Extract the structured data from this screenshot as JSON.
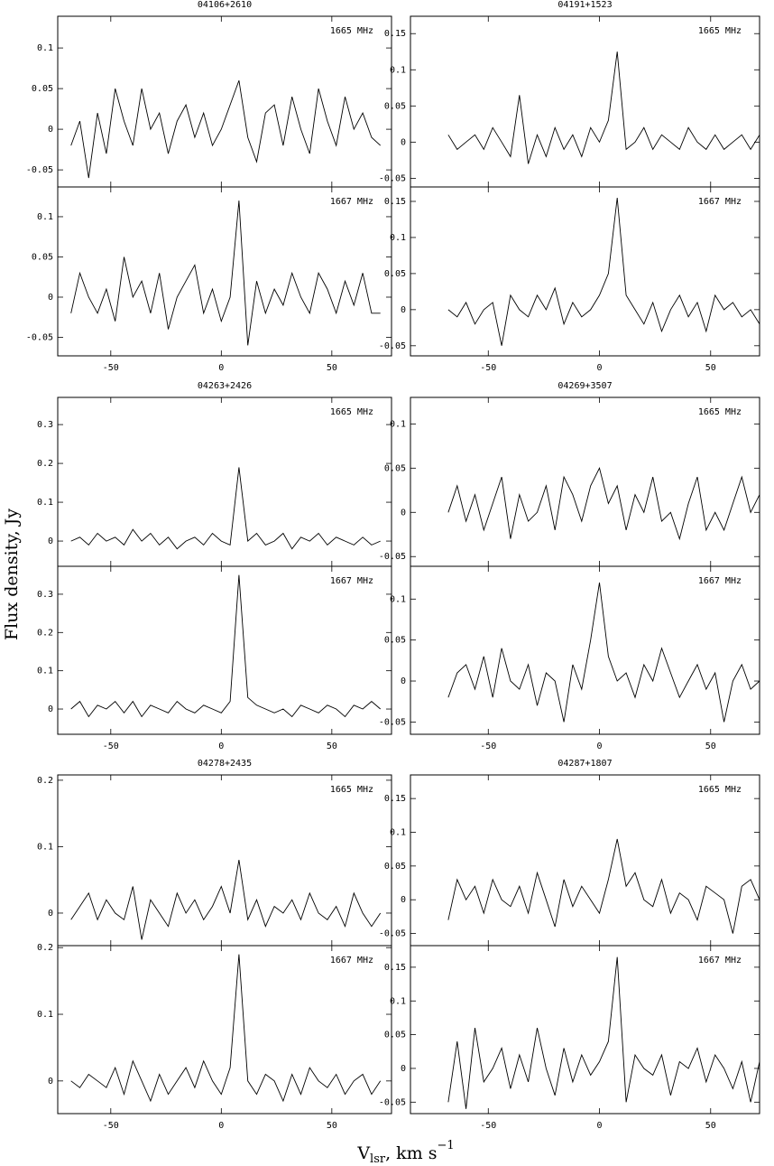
{
  "axis_titles": {
    "ylabel": "Flux density, Jy",
    "xlabel": [
      "V",
      "lsr",
      ", km s",
      "−1"
    ]
  },
  "chart_data": [
    {
      "type": "line",
      "title": "04106+2610",
      "label": "1665 MHz",
      "x": [
        -68,
        -64,
        -60,
        -56,
        -52,
        -48,
        -44,
        -40,
        -36,
        -32,
        -28,
        -24,
        -20,
        -16,
        -12,
        -8,
        -4,
        0,
        4,
        8,
        12,
        16,
        20,
        24,
        28,
        32,
        36,
        40,
        44,
        48,
        52,
        56,
        60,
        64,
        68,
        72
      ],
      "values": [
        -0.02,
        0.01,
        -0.06,
        0.02,
        -0.03,
        0.05,
        0.01,
        -0.02,
        0.05,
        0.0,
        0.02,
        -0.03,
        0.01,
        0.03,
        -0.01,
        0.02,
        -0.02,
        0.0,
        0.03,
        0.06,
        -0.01,
        -0.04,
        0.02,
        0.03,
        -0.02,
        0.04,
        0.0,
        -0.03,
        0.05,
        0.01,
        -0.02,
        0.04,
        0.0,
        0.02,
        -0.01,
        -0.02
      ],
      "color": "#000000",
      "xlim": [
        -74,
        77
      ],
      "xticks": [
        -50,
        0,
        50
      ],
      "ylim": [
        -0.071,
        0.139
      ],
      "yticks": [
        -0.05,
        0,
        0.05,
        0.1
      ]
    },
    {
      "type": "line",
      "label": "1667 MHz",
      "x": [
        -68,
        -64,
        -60,
        -56,
        -52,
        -48,
        -44,
        -40,
        -36,
        -32,
        -28,
        -24,
        -20,
        -16,
        -12,
        -8,
        -4,
        0,
        4,
        8,
        12,
        16,
        20,
        24,
        28,
        32,
        36,
        40,
        44,
        48,
        52,
        56,
        60,
        64,
        68,
        72
      ],
      "values": [
        -0.02,
        0.03,
        0.0,
        -0.02,
        0.01,
        -0.03,
        0.05,
        0.0,
        0.02,
        -0.02,
        0.03,
        -0.04,
        0.0,
        0.02,
        0.04,
        -0.02,
        0.01,
        -0.03,
        0.0,
        0.12,
        -0.06,
        0.02,
        -0.02,
        0.01,
        -0.01,
        0.03,
        0.0,
        -0.02,
        0.03,
        0.01,
        -0.02,
        0.02,
        -0.01,
        0.03,
        -0.02,
        -0.02
      ],
      "color": "#000000",
      "xlim": [
        -74,
        77
      ],
      "xticks": [
        -50,
        0,
        50
      ],
      "ylim": [
        -0.073,
        0.137
      ],
      "yticks": [
        -0.05,
        0,
        0.05,
        0.1
      ]
    },
    {
      "type": "line",
      "title": "04191+1523",
      "label": "1665 MHz",
      "x": [
        -68,
        -64,
        -60,
        -56,
        -52,
        -48,
        -44,
        -40,
        -36,
        -32,
        -28,
        -24,
        -20,
        -16,
        -12,
        -8,
        -4,
        0,
        4,
        8,
        12,
        16,
        20,
        24,
        28,
        32,
        36,
        40,
        44,
        48,
        52,
        56,
        60,
        64,
        68,
        72
      ],
      "values": [
        0.01,
        -0.01,
        0.0,
        0.01,
        -0.01,
        0.02,
        0.0,
        -0.02,
        0.065,
        -0.03,
        0.01,
        -0.02,
        0.02,
        -0.01,
        0.01,
        -0.02,
        0.02,
        0.0,
        0.03,
        0.125,
        -0.01,
        0.0,
        0.02,
        -0.01,
        0.01,
        0.0,
        -0.01,
        0.02,
        0.0,
        -0.01,
        0.01,
        -0.01,
        0.0,
        0.01,
        -0.01,
        0.01
      ],
      "color": "#000000",
      "xlim": [
        -85,
        72
      ],
      "xticks": [
        -50,
        0,
        50
      ],
      "ylim": [
        -0.062,
        0.174
      ],
      "yticks": [
        -0.05,
        0,
        0.05,
        0.1,
        0.15
      ]
    },
    {
      "type": "line",
      "label": "1667 MHz",
      "x": [
        -68,
        -64,
        -60,
        -56,
        -52,
        -48,
        -44,
        -40,
        -36,
        -32,
        -28,
        -24,
        -20,
        -16,
        -12,
        -8,
        -4,
        0,
        4,
        8,
        12,
        16,
        20,
        24,
        28,
        32,
        36,
        40,
        44,
        48,
        52,
        56,
        60,
        64,
        68,
        72
      ],
      "values": [
        0.0,
        -0.01,
        0.01,
        -0.02,
        0.0,
        0.01,
        -0.05,
        0.02,
        0.0,
        -0.01,
        0.02,
        0.0,
        0.03,
        -0.02,
        0.01,
        -0.01,
        0.0,
        0.02,
        0.05,
        0.155,
        0.02,
        0.0,
        -0.02,
        0.01,
        -0.03,
        0.0,
        0.02,
        -0.01,
        0.01,
        -0.03,
        0.02,
        0.0,
        0.01,
        -0.01,
        0.0,
        -0.02
      ],
      "color": "#000000",
      "xlim": [
        -85,
        72
      ],
      "xticks": [
        -50,
        0,
        50
      ],
      "ylim": [
        -0.064,
        0.17
      ],
      "yticks": [
        -0.05,
        0,
        0.05,
        0.1,
        0.15
      ]
    },
    {
      "type": "line",
      "title": "04263+2426",
      "label": "1665 MHz",
      "x": [
        -68,
        -64,
        -60,
        -56,
        -52,
        -48,
        -44,
        -40,
        -36,
        -32,
        -28,
        -24,
        -20,
        -16,
        -12,
        -8,
        -4,
        0,
        4,
        8,
        12,
        16,
        20,
        24,
        28,
        32,
        36,
        40,
        44,
        48,
        52,
        56,
        60,
        64,
        68,
        72
      ],
      "values": [
        0.0,
        0.01,
        -0.01,
        0.02,
        0.0,
        0.01,
        -0.01,
        0.03,
        0.0,
        0.02,
        -0.01,
        0.01,
        -0.02,
        0.0,
        0.01,
        -0.01,
        0.02,
        0.0,
        -0.01,
        0.19,
        0.0,
        0.02,
        -0.01,
        0.0,
        0.02,
        -0.02,
        0.01,
        0.0,
        0.02,
        -0.01,
        0.01,
        0.0,
        -0.01,
        0.01,
        -0.01,
        0.0
      ],
      "color": "#000000",
      "xlim": [
        -74,
        77
      ],
      "xticks": [
        -50,
        0,
        50
      ],
      "ylim": [
        -0.065,
        0.37
      ],
      "yticks": [
        0,
        0.1,
        0.2,
        0.3
      ]
    },
    {
      "type": "line",
      "label": "1667 MHz",
      "x": [
        -68,
        -64,
        -60,
        -56,
        -52,
        -48,
        -44,
        -40,
        -36,
        -32,
        -28,
        -24,
        -20,
        -16,
        -12,
        -8,
        -4,
        0,
        4,
        8,
        12,
        16,
        20,
        24,
        28,
        32,
        36,
        40,
        44,
        48,
        52,
        56,
        60,
        64,
        68,
        72
      ],
      "values": [
        0.0,
        0.02,
        -0.02,
        0.01,
        0.0,
        0.02,
        -0.01,
        0.02,
        -0.02,
        0.01,
        0.0,
        -0.01,
        0.02,
        0.0,
        -0.01,
        0.01,
        0.0,
        -0.01,
        0.02,
        0.35,
        0.03,
        0.01,
        0.0,
        -0.01,
        0.0,
        -0.02,
        0.01,
        0.0,
        -0.01,
        0.01,
        0.0,
        -0.02,
        0.01,
        0.0,
        0.02,
        0.0
      ],
      "color": "#000000",
      "xlim": [
        -74,
        77
      ],
      "xticks": [
        -50,
        0,
        50
      ],
      "ylim": [
        -0.066,
        0.373
      ],
      "yticks": [
        0,
        0.1,
        0.2,
        0.3
      ]
    },
    {
      "type": "line",
      "title": "04269+3507",
      "label": "1665 MHz",
      "x": [
        -68,
        -64,
        -60,
        -56,
        -52,
        -48,
        -44,
        -40,
        -36,
        -32,
        -28,
        -24,
        -20,
        -16,
        -12,
        -8,
        -4,
        0,
        4,
        8,
        12,
        16,
        20,
        24,
        28,
        32,
        36,
        40,
        44,
        48,
        52,
        56,
        60,
        64,
        68,
        72
      ],
      "values": [
        0.0,
        0.03,
        -0.01,
        0.02,
        -0.02,
        0.01,
        0.04,
        -0.03,
        0.02,
        -0.01,
        0.0,
        0.03,
        -0.02,
        0.04,
        0.02,
        -0.01,
        0.03,
        0.05,
        0.01,
        0.03,
        -0.02,
        0.02,
        0.0,
        0.04,
        -0.01,
        0.0,
        -0.03,
        0.01,
        0.04,
        -0.02,
        0.0,
        -0.02,
        0.01,
        0.04,
        0.0,
        0.02
      ],
      "color": "#000000",
      "xlim": [
        -85,
        72
      ],
      "xticks": [
        -50,
        0,
        50
      ],
      "ylim": [
        -0.061,
        0.13
      ],
      "yticks": [
        -0.05,
        0,
        0.05,
        0.1
      ]
    },
    {
      "type": "line",
      "label": "1667 MHz",
      "x": [
        -68,
        -64,
        -60,
        -56,
        -52,
        -48,
        -44,
        -40,
        -36,
        -32,
        -28,
        -24,
        -20,
        -16,
        -12,
        -8,
        -4,
        0,
        4,
        8,
        12,
        16,
        20,
        24,
        28,
        32,
        36,
        40,
        44,
        48,
        52,
        56,
        60,
        64,
        68,
        72
      ],
      "values": [
        -0.02,
        0.01,
        0.02,
        -0.01,
        0.03,
        -0.02,
        0.04,
        0.0,
        -0.01,
        0.02,
        -0.03,
        0.01,
        0.0,
        -0.05,
        0.02,
        -0.01,
        0.05,
        0.12,
        0.03,
        0.0,
        0.01,
        -0.02,
        0.02,
        0.0,
        0.04,
        0.01,
        -0.02,
        0.0,
        0.02,
        -0.01,
        0.01,
        -0.05,
        0.0,
        0.02,
        -0.01,
        0.0
      ],
      "color": "#000000",
      "xlim": [
        -85,
        72
      ],
      "xticks": [
        -50,
        0,
        50
      ],
      "ylim": [
        -0.065,
        0.14
      ],
      "yticks": [
        -0.05,
        0,
        0.05,
        0.1
      ]
    },
    {
      "type": "line",
      "title": "04278+2435",
      "label": "1665 MHz",
      "x": [
        -68,
        -64,
        -60,
        -56,
        -52,
        -48,
        -44,
        -40,
        -36,
        -32,
        -28,
        -24,
        -20,
        -16,
        -12,
        -8,
        -4,
        0,
        4,
        8,
        12,
        16,
        20,
        24,
        28,
        32,
        36,
        40,
        44,
        48,
        52,
        56,
        60,
        64,
        68,
        72
      ],
      "values": [
        -0.01,
        0.01,
        0.03,
        -0.01,
        0.02,
        0.0,
        -0.01,
        0.04,
        -0.04,
        0.02,
        0.0,
        -0.02,
        0.03,
        0.0,
        0.02,
        -0.01,
        0.01,
        0.04,
        0.0,
        0.08,
        -0.01,
        0.02,
        -0.02,
        0.01,
        0.0,
        0.02,
        -0.01,
        0.03,
        0.0,
        -0.01,
        0.01,
        -0.02,
        0.03,
        0.0,
        -0.02,
        0.0
      ],
      "color": "#000000",
      "xlim": [
        -74,
        77
      ],
      "xticks": [
        -50,
        0,
        50
      ],
      "ylim": [
        -0.049,
        0.208
      ],
      "yticks": [
        0,
        0.1,
        0.2
      ]
    },
    {
      "type": "line",
      "label": "1667 MHz",
      "x": [
        -68,
        -64,
        -60,
        -56,
        -52,
        -48,
        -44,
        -40,
        -36,
        -32,
        -28,
        -24,
        -20,
        -16,
        -12,
        -8,
        -4,
        0,
        4,
        8,
        12,
        16,
        20,
        24,
        28,
        32,
        36,
        40,
        44,
        48,
        52,
        56,
        60,
        64,
        68,
        72
      ],
      "values": [
        0.0,
        -0.01,
        0.01,
        0.0,
        -0.01,
        0.02,
        -0.02,
        0.03,
        0.0,
        -0.03,
        0.01,
        -0.02,
        0.0,
        0.02,
        -0.01,
        0.03,
        0.0,
        -0.02,
        0.02,
        0.19,
        0.0,
        -0.02,
        0.01,
        0.0,
        -0.03,
        0.01,
        -0.02,
        0.02,
        0.0,
        -0.01,
        0.01,
        -0.02,
        0.0,
        0.01,
        -0.02,
        0.0
      ],
      "color": "#000000",
      "xlim": [
        -74,
        77
      ],
      "xticks": [
        -50,
        0,
        50
      ],
      "ylim": [
        -0.049,
        0.203
      ],
      "yticks": [
        0,
        0.1,
        0.2
      ]
    },
    {
      "type": "line",
      "title": "04287+1807",
      "label": "1665 MHz",
      "x": [
        -68,
        -64,
        -60,
        -56,
        -52,
        -48,
        -44,
        -40,
        -36,
        -32,
        -28,
        -24,
        -20,
        -16,
        -12,
        -8,
        -4,
        0,
        4,
        8,
        12,
        16,
        20,
        24,
        28,
        32,
        36,
        40,
        44,
        48,
        52,
        56,
        60,
        64,
        68,
        72
      ],
      "values": [
        -0.03,
        0.03,
        0.0,
        0.02,
        -0.02,
        0.03,
        0.0,
        -0.01,
        0.02,
        -0.02,
        0.04,
        0.0,
        -0.04,
        0.03,
        -0.01,
        0.02,
        0.0,
        -0.02,
        0.03,
        0.09,
        0.02,
        0.04,
        0.0,
        -0.01,
        0.03,
        -0.02,
        0.01,
        0.0,
        -0.03,
        0.02,
        0.01,
        0.0,
        -0.05,
        0.02,
        0.03,
        0.0
      ],
      "color": "#000000",
      "xlim": [
        -85,
        72
      ],
      "xticks": [
        -50,
        0,
        50
      ],
      "ylim": [
        -0.068,
        0.185
      ],
      "yticks": [
        -0.05,
        0,
        0.05,
        0.1,
        0.15
      ]
    },
    {
      "type": "line",
      "label": "1667 MHz",
      "x": [
        -68,
        -64,
        -60,
        -56,
        -52,
        -48,
        -44,
        -40,
        -36,
        -32,
        -28,
        -24,
        -20,
        -16,
        -12,
        -8,
        -4,
        0,
        4,
        8,
        12,
        16,
        20,
        24,
        28,
        32,
        36,
        40,
        44,
        48,
        52,
        56,
        60,
        64,
        68,
        72
      ],
      "values": [
        -0.05,
        0.04,
        -0.06,
        0.06,
        -0.02,
        0.0,
        0.03,
        -0.03,
        0.02,
        -0.02,
        0.06,
        0.0,
        -0.04,
        0.03,
        -0.02,
        0.02,
        -0.01,
        0.01,
        0.04,
        0.165,
        -0.05,
        0.02,
        0.0,
        -0.01,
        0.02,
        -0.04,
        0.01,
        0.0,
        0.03,
        -0.02,
        0.02,
        0.0,
        -0.03,
        0.01,
        -0.05,
        0.01
      ],
      "color": "#000000",
      "xlim": [
        -85,
        72
      ],
      "xticks": [
        -50,
        0,
        50
      ],
      "ylim": [
        -0.067,
        0.182
      ],
      "yticks": [
        -0.05,
        0,
        0.05,
        0.1,
        0.15
      ]
    }
  ]
}
